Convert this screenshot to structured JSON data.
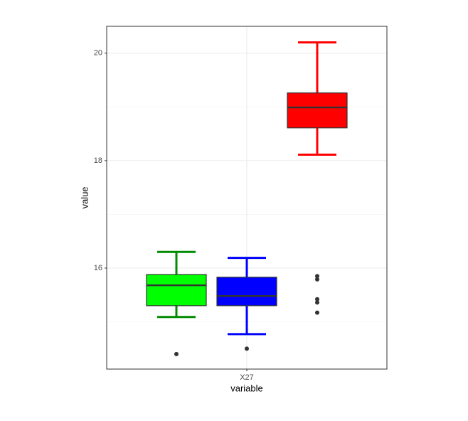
{
  "chart_data": {
    "type": "box",
    "x_label": "variable",
    "y_label": "value",
    "categories": [
      "X27"
    ],
    "ylim": [
      14.12,
      20.5
    ],
    "yticks": [
      16,
      18,
      20
    ],
    "yminor": [
      15,
      17,
      19
    ],
    "grid": true,
    "series": [
      {
        "color": "#008b00",
        "fill": "#00ff00",
        "low": 15.09,
        "q1": 15.3,
        "median": 15.68,
        "q3": 15.88,
        "high": 16.3,
        "outliers": [
          14.4
        ]
      },
      {
        "color": "#0000ff",
        "fill": "#0000ff",
        "low": 14.77,
        "q1": 15.3,
        "median": 15.48,
        "q3": 15.83,
        "high": 16.19,
        "outliers": [
          14.5
        ]
      },
      {
        "color": "#ff0000",
        "fill": "#ff0000",
        "low": 18.11,
        "q1": 18.61,
        "median": 18.99,
        "q3": 19.26,
        "high": 20.2,
        "outliers": [
          15.85,
          15.79,
          15.42,
          15.36,
          15.17
        ]
      }
    ]
  }
}
